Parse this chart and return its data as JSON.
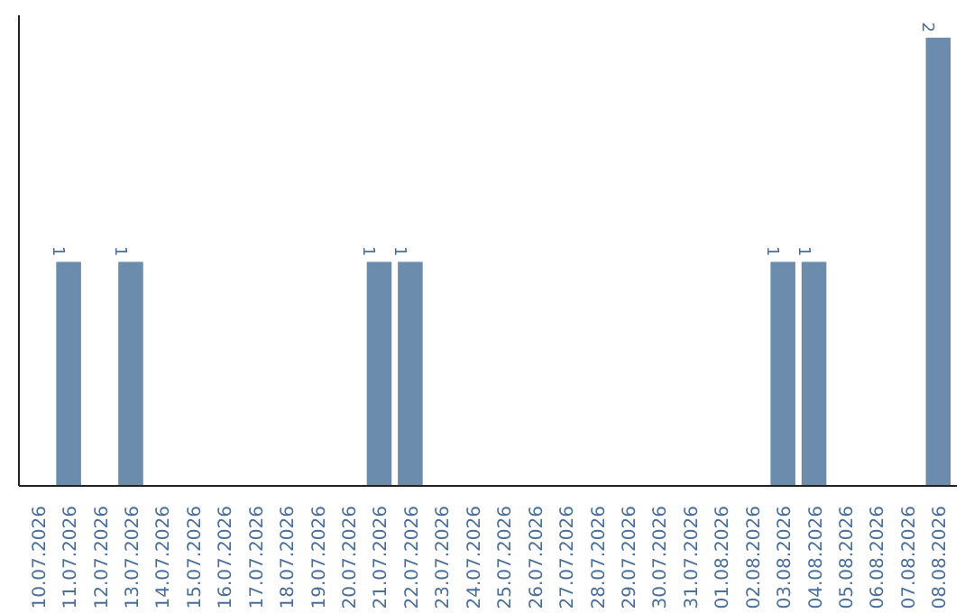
{
  "chart_data": {
    "type": "bar",
    "categories": [
      "10.07.2026",
      "11.07.2026",
      "12.07.2026",
      "13.07.2026",
      "14.07.2026",
      "15.07.2026",
      "16.07.2026",
      "17.07.2026",
      "18.07.2026",
      "19.07.2026",
      "20.07.2026",
      "21.07.2026",
      "22.07.2026",
      "23.07.2026",
      "24.07.2026",
      "25.07.2026",
      "26.07.2026",
      "27.07.2026",
      "28.07.2026",
      "29.07.2026",
      "30.07.2026",
      "31.07.2026",
      "01.08.2026",
      "02.08.2026",
      "03.08.2026",
      "04.08.2026",
      "05.08.2026",
      "06.08.2026",
      "07.08.2026",
      "08.08.2026"
    ],
    "values": [
      0,
      1,
      0,
      1,
      0,
      0,
      0,
      0,
      0,
      0,
      0,
      1,
      1,
      0,
      0,
      0,
      0,
      0,
      0,
      0,
      0,
      0,
      0,
      0,
      1,
      1,
      0,
      0,
      0,
      2
    ],
    "value_labels": [
      null,
      "1",
      null,
      "1",
      null,
      null,
      null,
      null,
      null,
      null,
      null,
      "1",
      "1",
      null,
      null,
      null,
      null,
      null,
      null,
      null,
      null,
      null,
      null,
      null,
      "1",
      "1",
      null,
      null,
      null,
      "2"
    ],
    "color": "#6b8cac",
    "tick_labels": "x",
    "grid": false
  }
}
